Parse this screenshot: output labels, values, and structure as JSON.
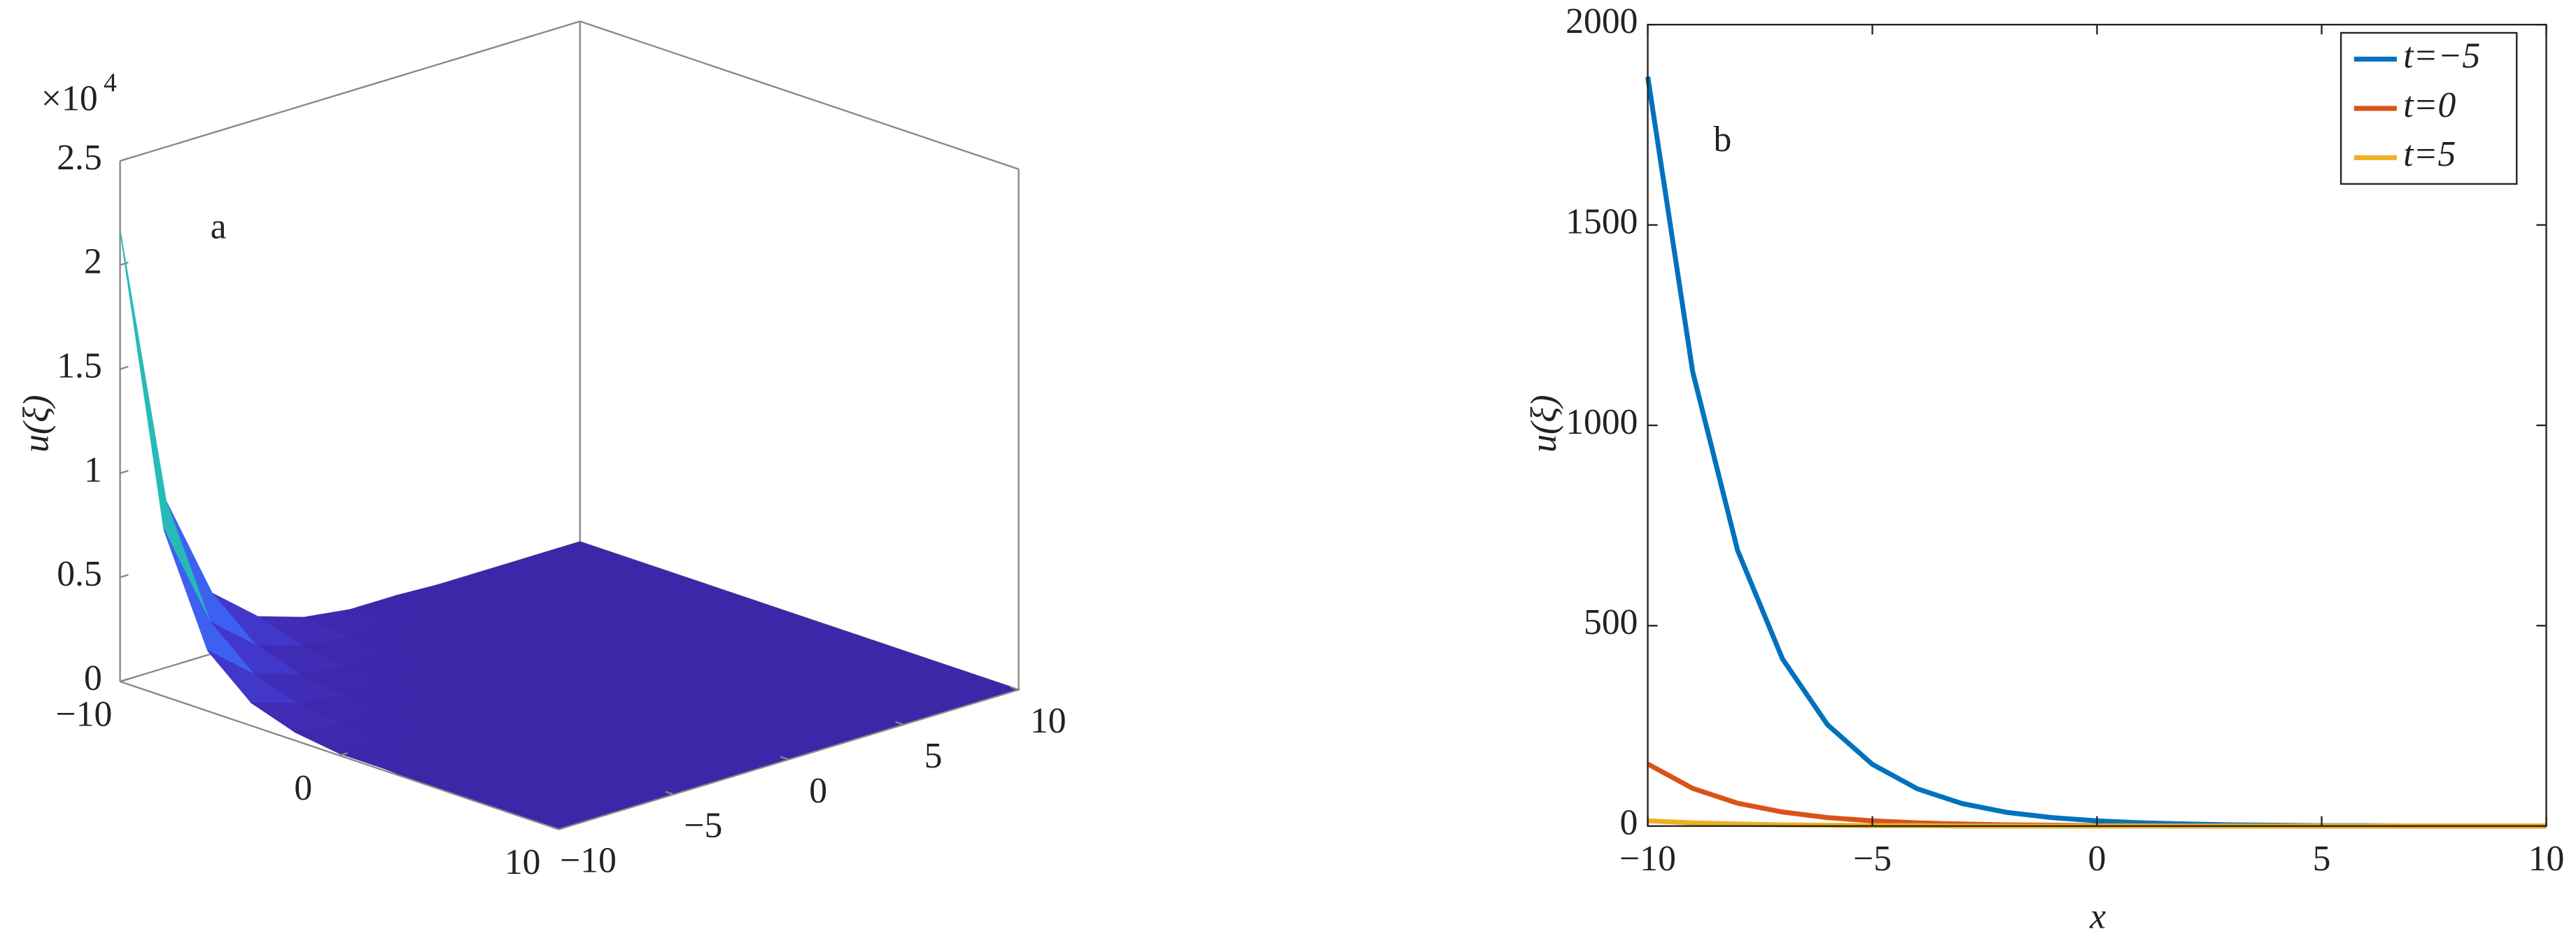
{
  "chart_data": [
    {
      "type": "surface",
      "annotation": "a",
      "zlabel": "u(ξ)",
      "z_multiplier": "×10",
      "z_multiplier_exponent": "4",
      "colormap": "parula",
      "x": [
        -10,
        -8,
        -6,
        -4,
        -2,
        0,
        2,
        4,
        6,
        8,
        10
      ],
      "y": [
        -10,
        -8,
        -6,
        -4,
        -2,
        0,
        2,
        4,
        6,
        8,
        10
      ],
      "z": [
        [
          2.17,
          0.8,
          0.29,
          0.11,
          0.04,
          0.01,
          0.01,
          0,
          0,
          0,
          0
        ],
        [
          0.8,
          0.29,
          0.11,
          0.04,
          0.01,
          0.01,
          0,
          0,
          0,
          0,
          0
        ],
        [
          0.29,
          0.11,
          0.04,
          0.01,
          0.01,
          0,
          0,
          0,
          0,
          0,
          0
        ],
        [
          0.11,
          0.04,
          0.01,
          0.01,
          0,
          0,
          0,
          0,
          0,
          0,
          0
        ],
        [
          0.04,
          0.01,
          0.01,
          0,
          0,
          0,
          0,
          0,
          0,
          0,
          0
        ],
        [
          0.01,
          0.01,
          0,
          0,
          0,
          0,
          0,
          0,
          0,
          0,
          0
        ],
        [
          0.01,
          0,
          0,
          0,
          0,
          0,
          0,
          0,
          0,
          0,
          0
        ],
        [
          0,
          0,
          0,
          0,
          0,
          0,
          0,
          0,
          0,
          0,
          0
        ],
        [
          0,
          0,
          0,
          0,
          0,
          0,
          0,
          0,
          0,
          0,
          0
        ],
        [
          0,
          0,
          0,
          0,
          0,
          0,
          0,
          0,
          0,
          0,
          0
        ],
        [
          0,
          0,
          0,
          0,
          0,
          0,
          0,
          0,
          0,
          0,
          0
        ]
      ],
      "xlim": [
        -10,
        10
      ],
      "xticks": [
        {
          "value": -10,
          "label": "−10"
        },
        0,
        10
      ],
      "ylim": [
        -10,
        10
      ],
      "yticks": [
        {
          "value": -10,
          "label": "−10"
        },
        {
          "value": -5,
          "label": "−5"
        },
        0,
        5,
        10
      ],
      "zlim": [
        0,
        2.5
      ],
      "zticks": [
        0,
        0.5,
        1,
        1.5,
        2,
        2.5
      ]
    },
    {
      "type": "line",
      "annotation": "b",
      "xlabel": "x",
      "ylabel": "u(ξ)",
      "legend": "upper right",
      "x": [
        -10,
        -9,
        -8,
        -7,
        -6,
        -5,
        -4,
        -3,
        -2,
        -1,
        0,
        1,
        2,
        3,
        4,
        5,
        6,
        7,
        8,
        9,
        10
      ],
      "series": [
        {
          "name": "t=−5",
          "color": "#0072bd",
          "values": [
            1870,
            1134,
            688,
            417,
            253,
            154,
            93,
            56,
            34,
            21,
            13,
            8,
            5,
            3,
            2,
            1,
            1,
            0,
            0,
            0,
            0
          ]
        },
        {
          "name": "t=0",
          "color": "#d95319",
          "values": [
            155,
            94,
            57,
            35,
            21,
            13,
            8,
            5,
            3,
            2,
            1,
            1,
            0,
            0,
            0,
            0,
            0,
            0,
            0,
            0,
            0
          ]
        },
        {
          "name": "t=5",
          "color": "#edb120",
          "values": [
            13,
            8,
            5,
            3,
            2,
            1,
            1,
            0,
            0,
            0,
            0,
            0,
            0,
            0,
            0,
            0,
            0,
            0,
            0,
            0,
            0
          ]
        }
      ],
      "xlim": [
        -10,
        10
      ],
      "xticks": [
        {
          "value": -10,
          "label": "−10"
        },
        {
          "value": -5,
          "label": "−5"
        },
        0,
        5,
        10
      ],
      "ylim": [
        0,
        2000
      ],
      "yticks": [
        0,
        500,
        1000,
        1500,
        2000
      ]
    }
  ]
}
